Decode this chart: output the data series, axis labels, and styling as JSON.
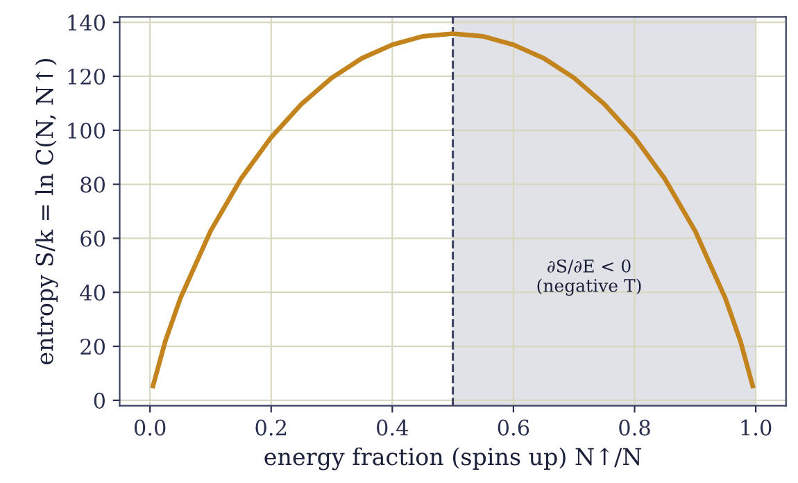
{
  "chart_data": {
    "type": "line",
    "xlabel": "energy fraction (spins up) N↑/N",
    "ylabel": "entropy S/k = ln C(N, N↑)",
    "x": [
      0.005,
      0.025,
      0.05,
      0.1,
      0.15,
      0.2,
      0.25,
      0.3,
      0.35,
      0.4,
      0.45,
      0.5,
      0.55,
      0.6,
      0.65,
      0.7,
      0.75,
      0.8,
      0.85,
      0.9,
      0.95,
      0.975,
      0.995
    ],
    "series": [
      {
        "color": "#c4841d",
        "values": [
          5.3,
          21.7,
          37.7,
          62.7,
          82.0,
          97.4,
          109.7,
          119.4,
          126.7,
          131.7,
          134.8,
          135.8,
          134.8,
          131.7,
          126.7,
          119.4,
          109.7,
          97.4,
          82.0,
          62.7,
          37.7,
          21.7,
          5.3
        ]
      }
    ],
    "xlim": [
      -0.05,
      1.05
    ],
    "ylim": [
      -2,
      142
    ],
    "xticks": [
      {
        "value": 0,
        "label": "0.0"
      },
      0.2,
      0.4,
      0.6,
      0.8,
      {
        "value": 1,
        "label": "1.0"
      }
    ],
    "yticks": [
      0,
      20,
      40,
      60,
      80,
      100,
      120,
      140
    ],
    "grid": true,
    "line_style": "solid",
    "marker": "none",
    "ref_lines": [
      {
        "axis": "x",
        "value": 0.5,
        "color": "#3b4261",
        "line_style": "dashed"
      }
    ],
    "bands": [
      {
        "axis": "x",
        "from": 0.5,
        "to": 1.0,
        "color": "#e1e2e7",
        "label": "∂S/∂E < 0\n(negative T)"
      }
    ]
  }
}
